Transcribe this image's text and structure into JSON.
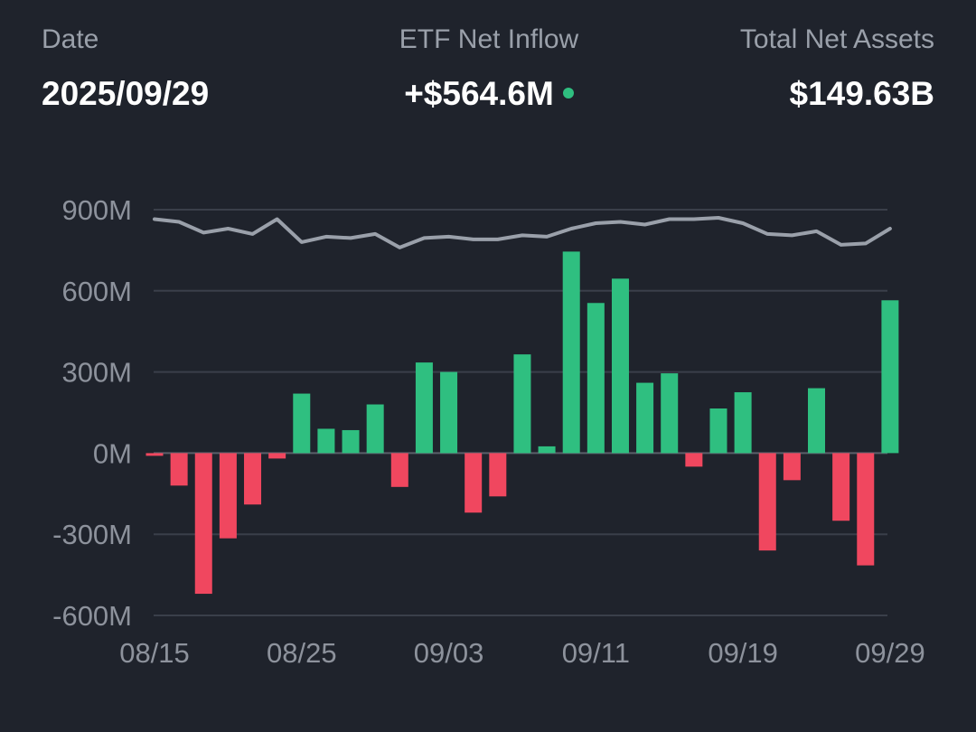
{
  "header": {
    "date_label": "Date",
    "date_value": "2025/09/29",
    "inflow_label": "ETF Net Inflow",
    "inflow_value": "+$564.6M",
    "assets_label": "Total Net Assets",
    "assets_value": "$149.63B"
  },
  "colors": {
    "background": "#1f232c",
    "positive": "#2fbf80",
    "negative": "#f0475f",
    "line": "#9aa0aa",
    "grid": "#3a3f4a",
    "tick_text": "#8d929c"
  },
  "chart_data": {
    "type": "bar",
    "y_ticks": [
      "900M",
      "600M",
      "300M",
      "0M",
      "-300M",
      "-600M"
    ],
    "y_tick_values": [
      900,
      600,
      300,
      0,
      -300,
      -600
    ],
    "ylim": [
      -600,
      900
    ],
    "x_ticks": [
      "08/15",
      "08/25",
      "09/03",
      "09/11",
      "09/19",
      "09/29"
    ],
    "x_tick_index": [
      0,
      6,
      12,
      18,
      24,
      30
    ],
    "grid": true,
    "series": [
      {
        "type": "bar",
        "unit": "M",
        "values": [
          -10,
          -120,
          -520,
          -315,
          -190,
          -20,
          220,
          90,
          85,
          180,
          -125,
          335,
          300,
          -220,
          -160,
          365,
          25,
          745,
          555,
          645,
          260,
          295,
          -50,
          165,
          225,
          -360,
          -100,
          240,
          -250,
          -415,
          565
        ]
      },
      {
        "type": "line",
        "values": [
          865,
          855,
          815,
          830,
          810,
          865,
          780,
          800,
          795,
          810,
          760,
          795,
          800,
          790,
          790,
          805,
          800,
          830,
          850,
          855,
          845,
          865,
          865,
          870,
          850,
          810,
          805,
          820,
          770,
          775,
          830
        ]
      }
    ]
  }
}
